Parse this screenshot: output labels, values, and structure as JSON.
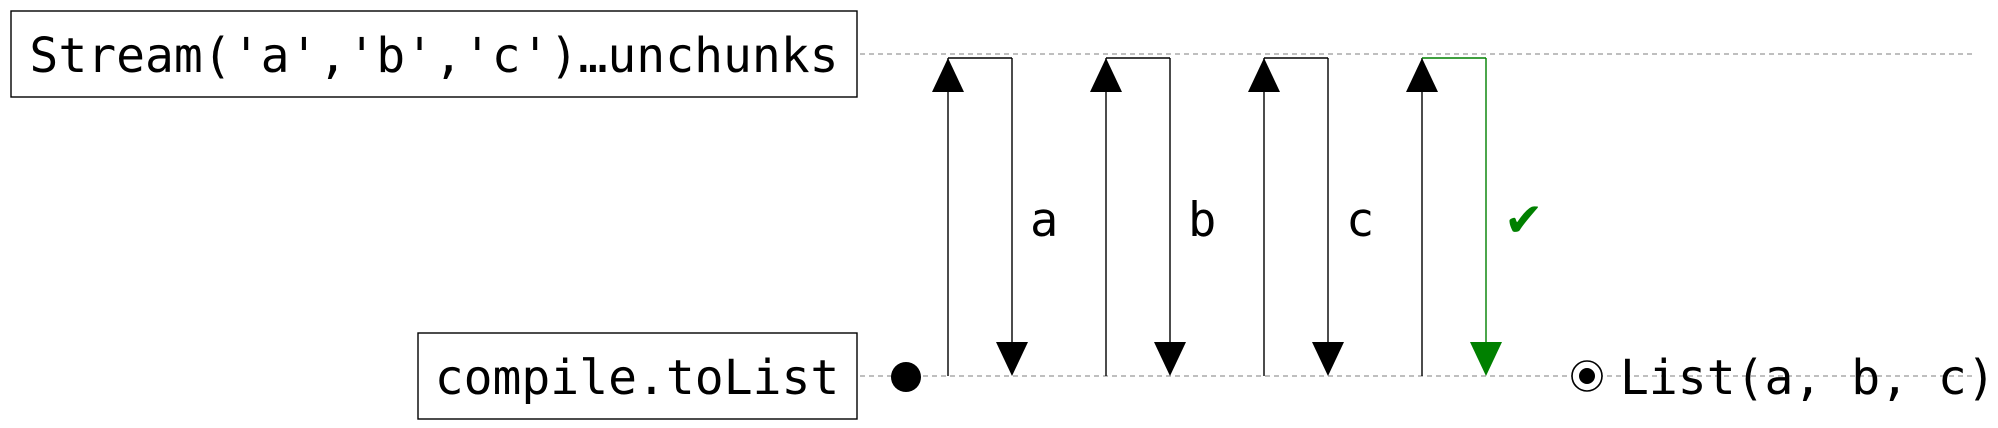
{
  "upstream": {
    "label": "Stream('a','b','c')…unchunks"
  },
  "downstream": {
    "label": "compile.toList"
  },
  "exchanges": [
    {
      "label": "a",
      "ok": false
    },
    {
      "label": "b",
      "ok": false
    },
    {
      "label": "c",
      "ok": false
    },
    {
      "label": "✔",
      "ok": true
    }
  ],
  "result": {
    "label": "List(a, b, c)"
  },
  "colors": {
    "line": "#000000",
    "lane": "#aaaaaa",
    "done": "#008000"
  }
}
